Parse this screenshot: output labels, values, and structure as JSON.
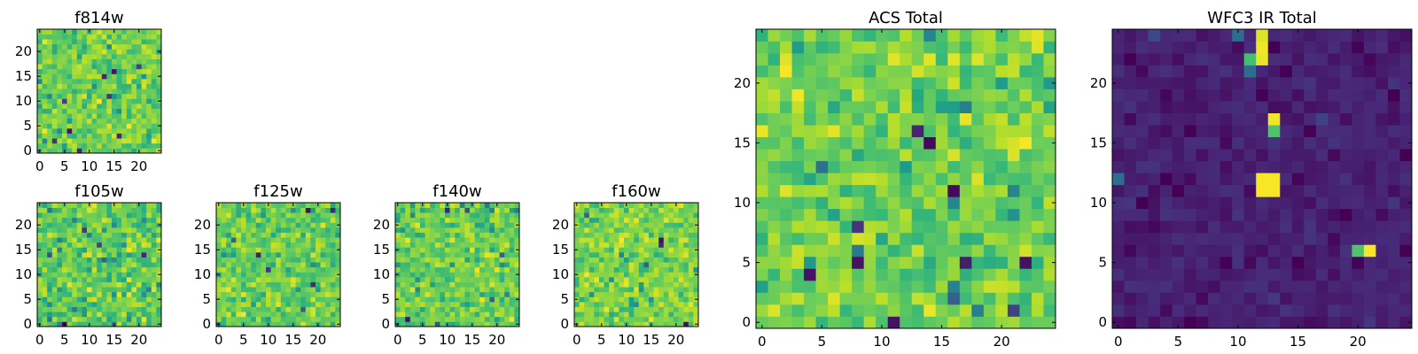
{
  "figure": {
    "background": "#ffffff",
    "colormap": "viridis",
    "colormap_stops": [
      "#440154",
      "#482878",
      "#3e4989",
      "#31688e",
      "#26828e",
      "#1f9e89",
      "#35b779",
      "#6ece58",
      "#b5de2b",
      "#fde725"
    ]
  },
  "chart_data": [
    {
      "id": "f814w",
      "type": "heatmap",
      "title": "f814w",
      "grid_size": 25,
      "xlim": [
        -0.5,
        24.5
      ],
      "ylim": [
        -0.5,
        24.5
      ],
      "xticks": [
        0,
        5,
        10,
        15,
        20
      ],
      "yticks": [
        0,
        5,
        10,
        15,
        20
      ],
      "value_range": [
        0,
        1
      ],
      "typical_level": 0.78,
      "spread": 0.14,
      "seed": 11,
      "features": [
        {
          "x": 15,
          "y": 16,
          "value": 0.05
        },
        {
          "x": 13,
          "y": 15,
          "value": 0.1
        },
        {
          "x": 5,
          "y": 10,
          "value": 0.2
        },
        {
          "x": 6,
          "y": 4,
          "value": 0.05
        },
        {
          "x": 16,
          "y": 3,
          "value": 0.1
        },
        {
          "x": 3,
          "y": 2,
          "value": 0.15
        },
        {
          "x": 8,
          "y": 0,
          "value": 0.1
        },
        {
          "x": 14,
          "y": 11,
          "value": 0.15
        },
        {
          "x": 20,
          "y": 17,
          "value": 0.2
        }
      ]
    },
    {
      "id": "f105w",
      "type": "heatmap",
      "title": "f105w",
      "grid_size": 25,
      "xlim": [
        -0.5,
        24.5
      ],
      "ylim": [
        -0.5,
        24.5
      ],
      "xticks": [
        0,
        5,
        10,
        15,
        20
      ],
      "yticks": [
        0,
        5,
        10,
        15,
        20
      ],
      "value_range": [
        0,
        1
      ],
      "typical_level": 0.76,
      "spread": 0.15,
      "seed": 23,
      "features": [
        {
          "x": 5,
          "y": 0,
          "value": 0.02
        },
        {
          "x": 9,
          "y": 19,
          "value": 0.15
        },
        {
          "x": 12,
          "y": 16,
          "value": 0.2
        },
        {
          "x": 21,
          "y": 14,
          "value": 0.1
        },
        {
          "x": 2,
          "y": 14,
          "value": 0.25
        },
        {
          "x": 10,
          "y": 7,
          "value": 0.98
        },
        {
          "x": 6,
          "y": 8,
          "value": 0.95
        },
        {
          "x": 18,
          "y": 9,
          "value": 0.96
        },
        {
          "x": 16,
          "y": 6,
          "value": 0.95
        },
        {
          "x": 13,
          "y": 13,
          "value": 0.3
        }
      ]
    },
    {
      "id": "f125w",
      "type": "heatmap",
      "title": "f125w",
      "grid_size": 25,
      "xlim": [
        -0.5,
        24.5
      ],
      "ylim": [
        -0.5,
        24.5
      ],
      "xticks": [
        0,
        5,
        10,
        15,
        20
      ],
      "yticks": [
        0,
        5,
        10,
        15,
        20
      ],
      "value_range": [
        0,
        1
      ],
      "typical_level": 0.78,
      "spread": 0.13,
      "seed": 37,
      "features": [
        {
          "x": 18,
          "y": 23,
          "value": 0.05
        },
        {
          "x": 23,
          "y": 23,
          "value": 0.1
        },
        {
          "x": 8,
          "y": 14,
          "value": 0.08
        },
        {
          "x": 10,
          "y": 11,
          "value": 0.15
        },
        {
          "x": 19,
          "y": 8,
          "value": 0.12
        },
        {
          "x": 17,
          "y": 3,
          "value": 0.3
        },
        {
          "x": 3,
          "y": 17,
          "value": 0.3
        },
        {
          "x": 5,
          "y": 2,
          "value": 0.98
        },
        {
          "x": 12,
          "y": 4,
          "value": 0.95
        },
        {
          "x": 21,
          "y": 20,
          "value": 0.96
        }
      ]
    },
    {
      "id": "f140w",
      "type": "heatmap",
      "title": "f140w",
      "grid_size": 25,
      "xlim": [
        -0.5,
        24.5
      ],
      "ylim": [
        -0.5,
        24.5
      ],
      "xticks": [
        0,
        5,
        10,
        15,
        20
      ],
      "yticks": [
        0,
        5,
        10,
        15,
        20
      ],
      "value_range": [
        0,
        1
      ],
      "typical_level": 0.78,
      "spread": 0.14,
      "seed": 53,
      "features": [
        {
          "x": 2,
          "y": 1,
          "value": 0.05
        },
        {
          "x": 8,
          "y": 0,
          "value": 0.25
        },
        {
          "x": 10,
          "y": 23,
          "value": 0.1
        },
        {
          "x": 14,
          "y": 23,
          "value": 0.25
        },
        {
          "x": 4,
          "y": 20,
          "value": 0.96
        },
        {
          "x": 11,
          "y": 17,
          "value": 0.95
        },
        {
          "x": 19,
          "y": 5,
          "value": 0.3
        },
        {
          "x": 16,
          "y": 11,
          "value": 0.97
        },
        {
          "x": 21,
          "y": 14,
          "value": 0.3
        }
      ]
    },
    {
      "id": "f160w",
      "type": "heatmap",
      "title": "f160w",
      "grid_size": 25,
      "xlim": [
        -0.5,
        24.5
      ],
      "ylim": [
        -0.5,
        24.5
      ],
      "xticks": [
        0,
        5,
        10,
        15,
        20
      ],
      "yticks": [
        0,
        5,
        10,
        15,
        20
      ],
      "value_range": [
        0,
        1
      ],
      "typical_level": 0.8,
      "spread": 0.13,
      "seed": 71,
      "features": [
        {
          "x": 17,
          "y": 17,
          "value": 0.05
        },
        {
          "x": 17,
          "y": 16,
          "value": 0.1
        },
        {
          "x": 22,
          "y": 0,
          "value": 0.05
        },
        {
          "x": 2,
          "y": 22,
          "value": 0.3
        },
        {
          "x": 18,
          "y": 21,
          "value": 0.96
        },
        {
          "x": 10,
          "y": 9,
          "value": 0.95
        },
        {
          "x": 6,
          "y": 3,
          "value": 0.97
        },
        {
          "x": 14,
          "y": 12,
          "value": 0.3
        }
      ]
    },
    {
      "id": "acs-total",
      "type": "heatmap",
      "title": "ACS Total",
      "grid_size": 25,
      "xlim": [
        -0.5,
        24.5
      ],
      "ylim": [
        -0.5,
        24.5
      ],
      "xticks": [
        0,
        5,
        10,
        15,
        20
      ],
      "yticks": [
        0,
        5,
        10,
        15,
        20
      ],
      "value_range": [
        0,
        1
      ],
      "typical_level": 0.78,
      "spread": 0.14,
      "seed": 89,
      "features": [
        {
          "x": 14,
          "y": 15,
          "value": 0.02
        },
        {
          "x": 13,
          "y": 16,
          "value": 0.1
        },
        {
          "x": 16,
          "y": 11,
          "value": 0.03
        },
        {
          "x": 8,
          "y": 5,
          "value": 0.05
        },
        {
          "x": 17,
          "y": 5,
          "value": 0.08
        },
        {
          "x": 22,
          "y": 5,
          "value": 0.05
        },
        {
          "x": 4,
          "y": 4,
          "value": 0.05
        },
        {
          "x": 11,
          "y": 0,
          "value": 0.05
        },
        {
          "x": 8,
          "y": 8,
          "value": 0.15
        },
        {
          "x": 16,
          "y": 2,
          "value": 0.3
        },
        {
          "x": 21,
          "y": 1,
          "value": 0.2
        },
        {
          "x": 3,
          "y": 19,
          "value": 0.98
        },
        {
          "x": 0,
          "y": 16,
          "value": 0.97
        },
        {
          "x": 6,
          "y": 16,
          "value": 0.96
        },
        {
          "x": 14,
          "y": 1,
          "value": 0.97
        },
        {
          "x": 6,
          "y": 2,
          "value": 0.95
        },
        {
          "x": 23,
          "y": 24,
          "value": 0.96
        },
        {
          "x": 18,
          "y": 22,
          "value": 0.95
        },
        {
          "x": 1,
          "y": 1,
          "value": 0.95
        }
      ]
    },
    {
      "id": "wfc3-ir-total",
      "type": "heatmap",
      "title": "WFC3 IR Total",
      "grid_size": 25,
      "xlim": [
        -0.5,
        24.5
      ],
      "ylim": [
        -0.5,
        24.5
      ],
      "xticks": [
        0,
        5,
        10,
        15,
        20
      ],
      "yticks": [
        0,
        5,
        10,
        15,
        20
      ],
      "value_range": [
        0,
        1
      ],
      "typical_level": 0.09,
      "spread": 0.05,
      "seed": 97,
      "features": [
        {
          "x": 12,
          "y": 24,
          "value": 0.95
        },
        {
          "x": 12,
          "y": 23,
          "value": 0.98
        },
        {
          "x": 11,
          "y": 22,
          "value": 0.7
        },
        {
          "x": 12,
          "y": 22,
          "value": 0.97
        },
        {
          "x": 11,
          "y": 21,
          "value": 0.35
        },
        {
          "x": 13,
          "y": 17,
          "value": 0.98
        },
        {
          "x": 13,
          "y": 16,
          "value": 0.72
        },
        {
          "x": 12,
          "y": 12,
          "value": 0.99
        },
        {
          "x": 13,
          "y": 12,
          "value": 0.99
        },
        {
          "x": 12,
          "y": 11,
          "value": 0.99
        },
        {
          "x": 13,
          "y": 11,
          "value": 0.99
        },
        {
          "x": 20,
          "y": 6,
          "value": 0.72
        },
        {
          "x": 21,
          "y": 6,
          "value": 0.99
        },
        {
          "x": 0,
          "y": 12,
          "value": 0.35
        },
        {
          "x": 2,
          "y": 21,
          "value": 0.02
        },
        {
          "x": 10,
          "y": 24,
          "value": 0.35
        },
        {
          "x": 3,
          "y": 24,
          "value": 0.22
        },
        {
          "x": 9,
          "y": 15,
          "value": 0.02
        },
        {
          "x": 17,
          "y": 17,
          "value": 0.2
        }
      ]
    }
  ]
}
